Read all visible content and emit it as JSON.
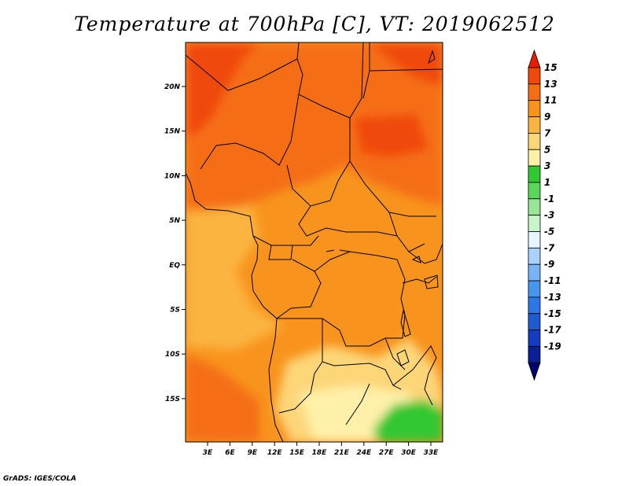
{
  "title": "Temperature at 700hPa [C], VT: 2019062512",
  "credit": "GrADS: IGES/COLA",
  "map": {
    "lon_labels": [
      "3E",
      "6E",
      "9E",
      "12E",
      "15E",
      "18E",
      "21E",
      "24E",
      "27E",
      "30E",
      "33E"
    ],
    "lat_labels": [
      "20N",
      "15N",
      "10N",
      "5N",
      "EQ",
      "5S",
      "10S",
      "15S"
    ]
  },
  "colorbar": {
    "labels": [
      "15",
      "13",
      "11",
      "9",
      "7",
      "5",
      "3",
      "1",
      "-1",
      "-3",
      "-5",
      "-7",
      "-9",
      "-11",
      "-13",
      "-15",
      "-17",
      "-19"
    ],
    "colors": [
      "#e61e00",
      "#f04a0a",
      "#f56e14",
      "#f8941e",
      "#fbb440",
      "#fdd678",
      "#fef0a8",
      "#32c832",
      "#5ad75a",
      "#96e696",
      "#c8f5c8",
      "#e6f5ff",
      "#aad2ff",
      "#78b4f5",
      "#4696f0",
      "#2d78e6",
      "#1e5ad2",
      "#143cbe",
      "#0a1e96",
      "#00006e"
    ]
  }
}
